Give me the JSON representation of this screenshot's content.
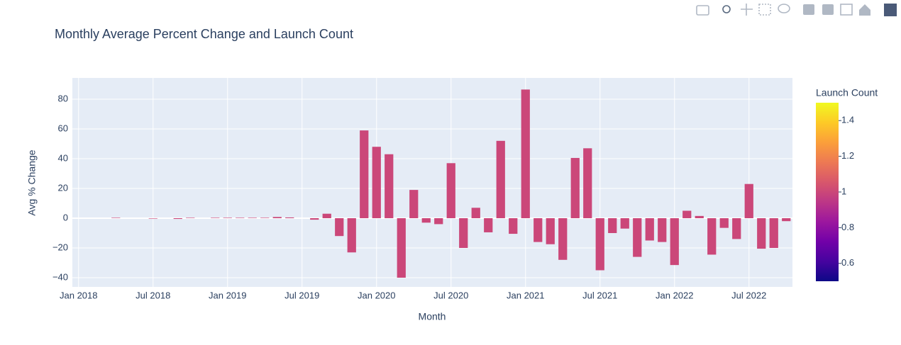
{
  "chart_data": {
    "type": "bar",
    "title": "Monthly Average Percent Change and Launch Count",
    "x_label": "Month",
    "y_label": "Avg % Change",
    "x": [
      "2018-01",
      "2018-02",
      "2018-03",
      "2018-04",
      "2018-05",
      "2018-06",
      "2018-07",
      "2018-08",
      "2018-09",
      "2018-10",
      "2018-11",
      "2018-12",
      "2019-01",
      "2019-02",
      "2019-03",
      "2019-04",
      "2019-05",
      "2019-06",
      "2019-07",
      "2019-08",
      "2019-09",
      "2019-10",
      "2019-11",
      "2019-12",
      "2020-01",
      "2020-02",
      "2020-03",
      "2020-04",
      "2020-05",
      "2020-06",
      "2020-07",
      "2020-08",
      "2020-09",
      "2020-10",
      "2020-11",
      "2020-12",
      "2021-01",
      "2021-02",
      "2021-03",
      "2021-04",
      "2021-05",
      "2021-06",
      "2021-07",
      "2021-08",
      "2021-09",
      "2021-10",
      "2021-11",
      "2021-12",
      "2022-01",
      "2022-02",
      "2022-03",
      "2022-04",
      "2022-05",
      "2022-06",
      "2022-07",
      "2022-08",
      "2022-09",
      "2022-10"
    ],
    "values": [
      0,
      0,
      0,
      0.3,
      0,
      0,
      -0.3,
      0,
      -0.5,
      0.3,
      0,
      0.3,
      0.3,
      0.3,
      0.3,
      0.3,
      0.8,
      0.5,
      0,
      -1,
      3,
      -12,
      -23,
      59,
      48,
      43,
      -40,
      19,
      -3,
      -4,
      37,
      -20,
      7,
      -9.5,
      52,
      -10.5,
      86.5,
      -16,
      -17.5,
      -28,
      40.5,
      47,
      -35,
      -10,
      -7,
      -26,
      -15,
      -16,
      -31.5,
      5,
      1.5,
      -24.5,
      -6.5,
      -14,
      23,
      -20.5,
      -20,
      -2
    ],
    "color_values": [
      1,
      1,
      1,
      1,
      1,
      1,
      1,
      1,
      1,
      1,
      1,
      1,
      1,
      1,
      1,
      1,
      1,
      1,
      1,
      1,
      1,
      1,
      1,
      1,
      1,
      1,
      1,
      1,
      1,
      1,
      1,
      1,
      1,
      1,
      1,
      1,
      1,
      1,
      1,
      1,
      1,
      1,
      1,
      1,
      1,
      1,
      1,
      1,
      1,
      1,
      1,
      1,
      1,
      1,
      1,
      1,
      1,
      1
    ],
    "colorscale": [
      "#0d0887",
      "#46039f",
      "#7201a8",
      "#9c179e",
      "#bd3786",
      "#d8576b",
      "#ed7953",
      "#fb9f3a",
      "#fdca26",
      "#f0f921"
    ],
    "colorbar": {
      "title": "Launch Count",
      "lim": [
        0.5,
        1.5
      ],
      "ticks": [
        {
          "value": 0.6,
          "label": "0.6"
        },
        {
          "value": 0.8,
          "label": "0.8"
        },
        1,
        {
          "value": 1.2,
          "label": "1.2"
        },
        {
          "value": 1.4,
          "label": "1.4"
        }
      ]
    },
    "ylim": [
      -46.2,
      94.3
    ],
    "yticks": [
      {
        "value": -40,
        "label": "−40"
      },
      {
        "value": -20,
        "label": "−20"
      },
      0,
      20,
      40,
      60,
      80
    ],
    "xticks": [
      {
        "value": "2018-01",
        "label": "Jan 2018"
      },
      {
        "value": "2018-07",
        "label": "Jul 2018"
      },
      {
        "value": "2019-01",
        "label": "Jan 2019"
      },
      {
        "value": "2019-07",
        "label": "Jul 2019"
      },
      {
        "value": "2020-01",
        "label": "Jan 2020"
      },
      {
        "value": "2020-07",
        "label": "Jul 2020"
      },
      {
        "value": "2021-01",
        "label": "Jan 2021"
      },
      {
        "value": "2021-07",
        "label": "Jul 2021"
      },
      {
        "value": "2022-01",
        "label": "Jan 2022"
      },
      {
        "value": "2022-07",
        "label": "Jul 2022"
      }
    ],
    "grid": true
  }
}
